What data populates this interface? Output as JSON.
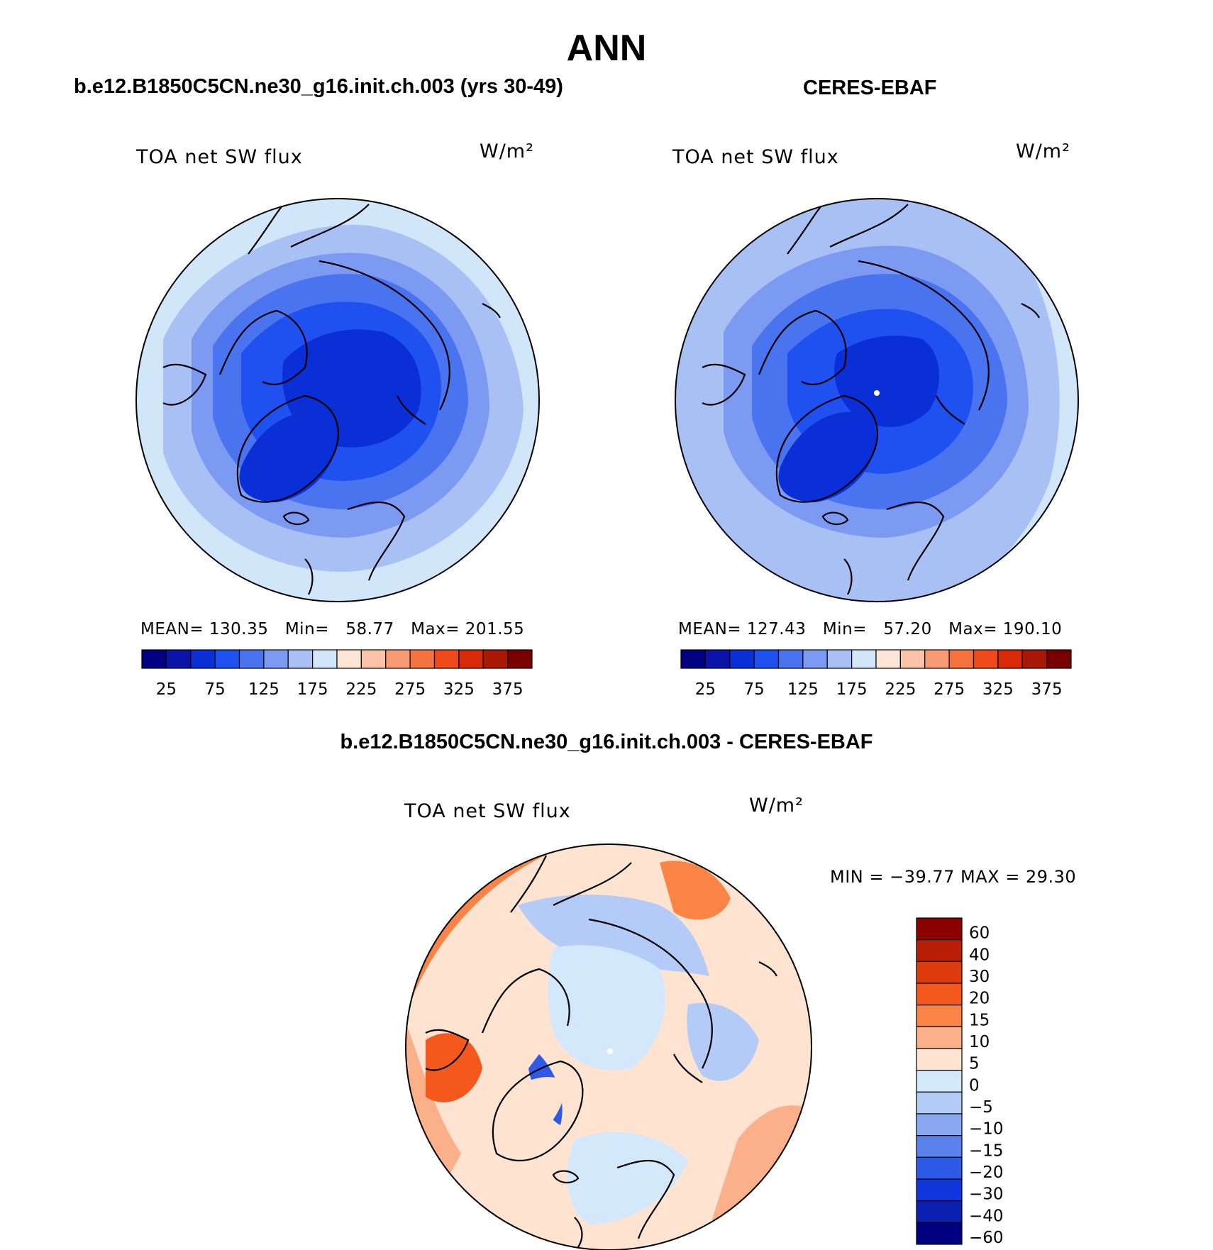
{
  "title": "ANN",
  "panels": [
    {
      "dataset": "b.e12.B1850C5CN.ne30_g16.init.ch.003 (yrs 30-49)",
      "variable": "TOA net SW flux",
      "units": "W/m²",
      "mean_label": "MEAN=",
      "mean": "130.35",
      "min_label": "Min=",
      "min": "58.77",
      "max_label": "Max=",
      "max": "201.55"
    },
    {
      "dataset": "CERES-EBAF",
      "variable": "TOA net SW flux",
      "units": "W/m²",
      "mean_label": "MEAN=",
      "mean": "127.43",
      "min_label": "Min=",
      "min": "57.20",
      "max_label": "Max=",
      "max": "190.10"
    }
  ],
  "colorbar_main": {
    "colors": [
      "#000080",
      "#0a14a8",
      "#0b2fd6",
      "#1f50f0",
      "#4a73f0",
      "#7c9af2",
      "#a9c0f5",
      "#d2e6fa",
      "#fde6d6",
      "#fbc3a7",
      "#f89a74",
      "#f5733f",
      "#f04a1a",
      "#d92a08",
      "#a81805",
      "#7a0000"
    ],
    "labels": [
      "25",
      "75",
      "125",
      "175",
      "225",
      "275",
      "325",
      "375"
    ]
  },
  "diff_panel": {
    "dataset": "b.e12.B1850C5CN.ne30_g16.init.ch.003 - CERES-EBAF",
    "variable": "TOA net SW flux",
    "units": "W/m²",
    "minmax_text": "MIN = −39.77 MAX =   29.30"
  },
  "colorbar_diff": {
    "colors": [
      "#8b0000",
      "#b81e05",
      "#dd3a0e",
      "#f5581c",
      "#f98446",
      "#fbb08a",
      "#fde3d0",
      "#d3e8fa",
      "#b5cbf7",
      "#8aa8f2",
      "#5b82ec",
      "#2f5ae8",
      "#0f36db",
      "#0a20b0",
      "#000080"
    ],
    "labels": [
      "60",
      "40",
      "30",
      "20",
      "15",
      "10",
      "5",
      "0",
      "−5",
      "−10",
      "−15",
      "−20",
      "−30",
      "−40",
      "−60"
    ]
  }
}
